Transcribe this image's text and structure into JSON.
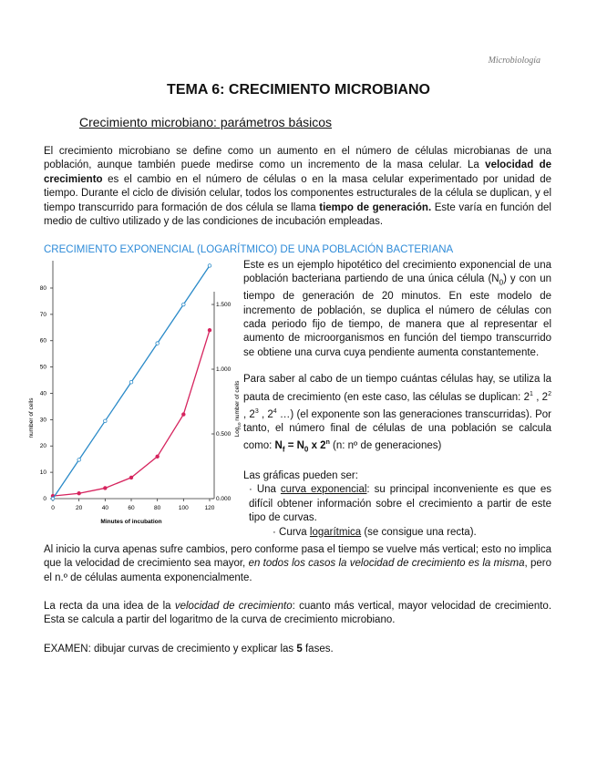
{
  "header": "Microbiología",
  "title": "TEMA 6: CRECIMIENTO MICROBIANO",
  "subtitle": "Crecimiento microbiano: parámetros básicos",
  "intro": [
    "El crecimiento microbiano se define como un aumento en el número de células microbianas de una población, aunque también puede medirse como un incremento de la masa celular. La ",
    "velocidad de crecimiento",
    " es el cambio en el número de células o en la masa celular experimentado por unidad de tiempo. Durante el ciclo de división celular, todos los componentes estructurales de la célula se duplican, y el tiempo transcurrido para formación de dos célula se llama ",
    "tiempo de generación.",
    " Este varía en función del medio de cultivo utilizado y de las condiciones de incubación empleadas."
  ],
  "section_heading": "CRECIMIENTO EXPONENCIAL (LOGARÍTMICO) DE UNA POBLACIÓN BACTERIANA",
  "p1": [
    "Este es un ejemplo hipotético del crecimiento exponencial de una población bacteriana partiendo de una única célula (N",
    "0",
    ") y con un tiempo de generación de 20 minutos. En este modelo de incremento de población, se duplica el número de células con cada periodo fijo de tiempo, de manera que al representar el aumento de microorganismos en función del tiempo transcurrido se obtiene una curva cuya pendiente aumenta constantemente."
  ],
  "p2": [
    "Para saber al cabo de un tiempo cuántas células hay, se utiliza la pauta de crecimiento (en este caso, las células se duplican: 2",
    "1",
    " , 2",
    "2",
    " , 2",
    "3",
    " , 2",
    "4",
    " …) (el exponente son las generaciones transcurridas). Por tanto, el número final de células de una población se calcula como: ",
    "N",
    "f",
    " = N",
    "0",
    " x 2",
    "n",
    " (n: nº de generaciones)"
  ],
  "p3": "Las gráficas pueden ser:",
  "list": [
    [
      "· Una ",
      "curva exponencial",
      ": su principal inconveniente es que es difícil obtener información sobre el crecimiento a partir de este tipo de curvas."
    ],
    [
      "· Curva ",
      "logarítmica",
      " (se consigue una recta)."
    ]
  ],
  "p4": [
    "Al inicio la curva apenas sufre cambios, pero conforme pasa el tiempo se vuelve más vertical; esto no implica que la velocidad de crecimiento sea mayor, ",
    "en todos los casos la velocidad de crecimiento es la misma",
    ", pero el n.º de células aumenta exponencialmente."
  ],
  "p5": [
    "La recta da una idea de la ",
    "velocidad de crecimiento",
    ": cuanto más vertical, mayor velocidad de crecimiento. Esta se calcula a partir del logaritmo de la curva de crecimiento microbiano."
  ],
  "p6": [
    "EXAMEN: dibujar curvas de crecimiento y explicar las ",
    "5",
    " fases."
  ],
  "chart_data": {
    "type": "line",
    "x_label": "Minutes of incubation",
    "y_label": "number of cells",
    "y2_label": [
      "Log",
      "10",
      " number of cells"
    ],
    "x": [
      0,
      20,
      40,
      60,
      80,
      100,
      120
    ],
    "xlim": [
      0,
      120
    ],
    "xticks": [
      0,
      20,
      40,
      60,
      80,
      100,
      120
    ],
    "ylim": [
      0,
      89
    ],
    "yticks": [
      0,
      10,
      20,
      30,
      40,
      50,
      60,
      70,
      80
    ],
    "y2lim": [
      0,
      1.81
    ],
    "y2ticks": [
      {
        "value": 0,
        "label": "0.000"
      },
      {
        "value": 0.5,
        "label": "0.500"
      },
      {
        "value": 1,
        "label": "1.000"
      },
      {
        "value": 1.5,
        "label": "1.500"
      }
    ],
    "series": [
      {
        "color": "#d6245e",
        "values": [
          1,
          2,
          4,
          8,
          16,
          32,
          64
        ]
      },
      {
        "color": "#2a8ac8",
        "axis": "y2",
        "values": [
          0,
          0.3,
          0.6,
          0.9,
          1.2,
          1.5,
          1.8
        ]
      }
    ]
  }
}
